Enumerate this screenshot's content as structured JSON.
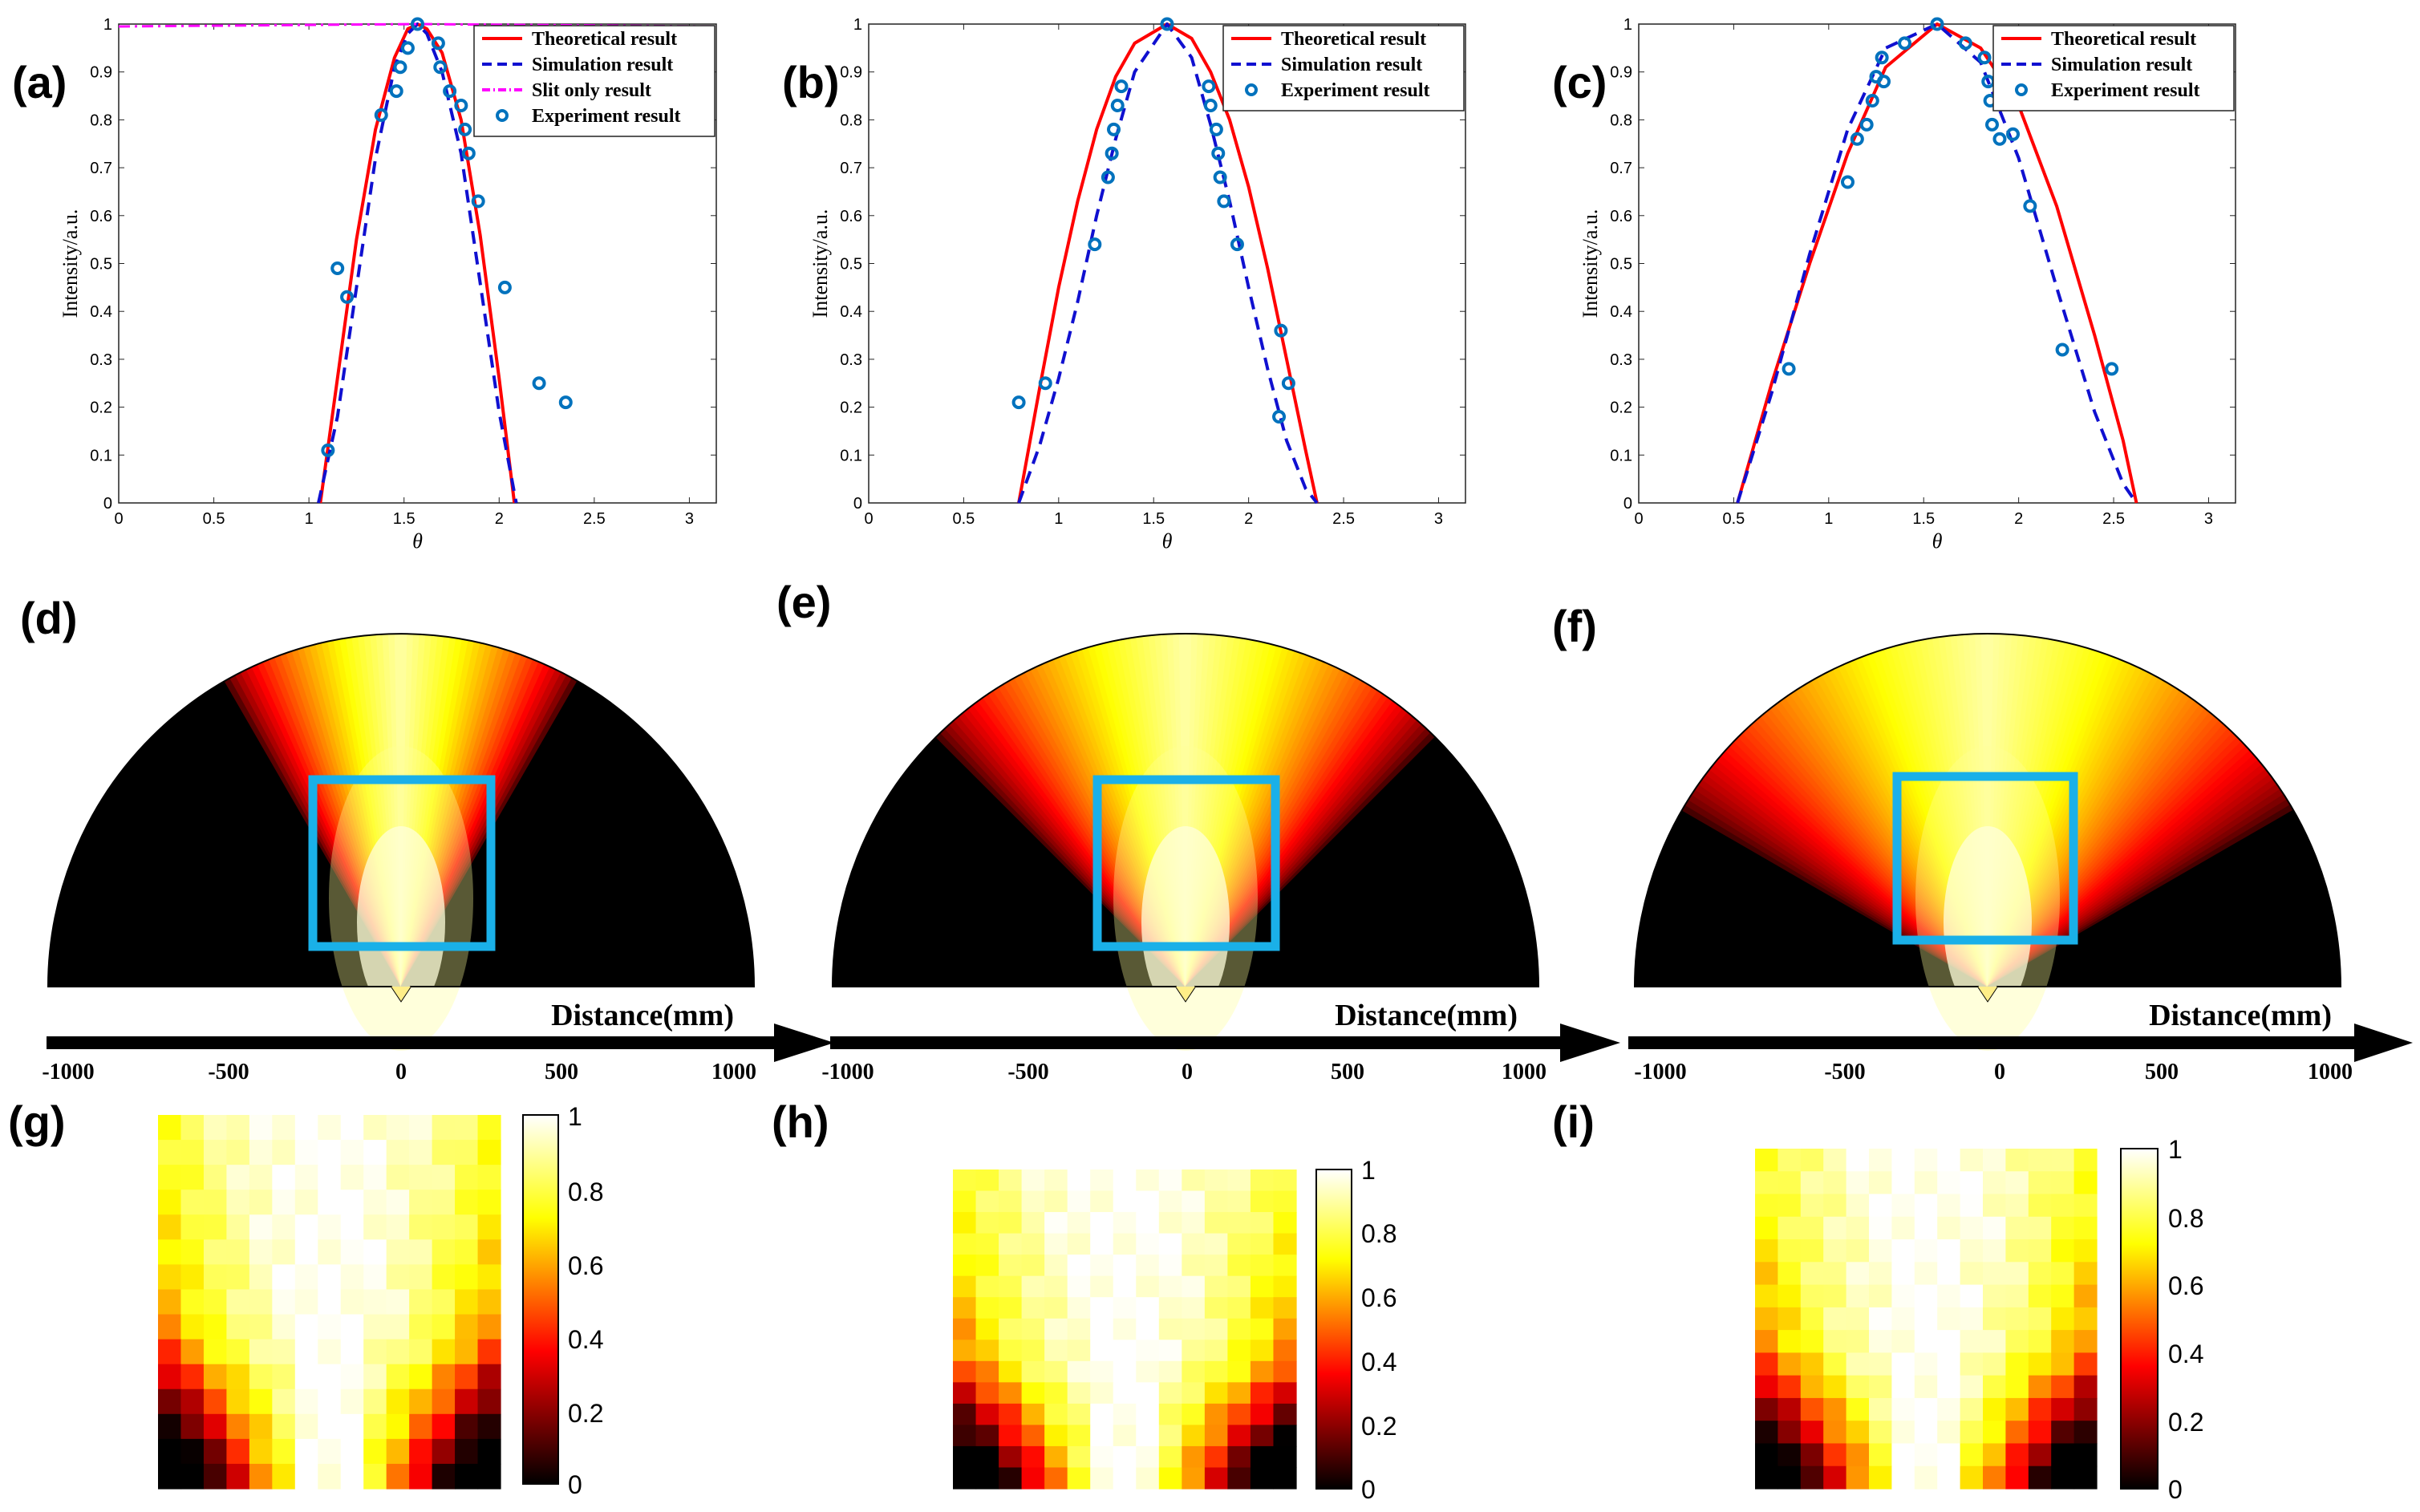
{
  "panel_labels": [
    "(a)",
    "(b)",
    "(c)",
    "(d)",
    "(e)",
    "(f)",
    "(g)",
    "(h)",
    "(i)"
  ],
  "colors": {
    "theoretical": "#ff0000",
    "simulation": "#1010d0",
    "slit_only": "#ff00ff",
    "experiment": "#0072bd",
    "highlight_box": "#1ab0e8",
    "colormap": "hot"
  },
  "chart_data": [
    {
      "id": "a",
      "type": "line",
      "xlabel": "θ",
      "ylabel": "Intensity/a.u.",
      "xlim": [
        0,
        3.14159
      ],
      "ylim": [
        0,
        1
      ],
      "xticks": [
        "0",
        "0.5",
        "1",
        "1.5",
        "2",
        "2.5",
        "3"
      ],
      "yticks": [
        "0",
        "0.1",
        "0.2",
        "0.3",
        "0.4",
        "0.5",
        "0.6",
        "0.7",
        "0.8",
        "0.9",
        "1"
      ],
      "legend_position": "top-right",
      "grid": false,
      "series": [
        {
          "name": "Theoretical result",
          "style": "solid",
          "x": [
            1.06,
            1.15,
            1.25,
            1.35,
            1.45,
            1.52,
            1.5708,
            1.62,
            1.7,
            1.8,
            1.9,
            2.0,
            2.08
          ],
          "y": [
            0,
            0.26,
            0.55,
            0.78,
            0.93,
            0.99,
            1.0,
            0.99,
            0.94,
            0.8,
            0.56,
            0.26,
            0
          ]
        },
        {
          "name": "Simulation result",
          "style": "dashed",
          "x": [
            1.05,
            1.15,
            1.25,
            1.35,
            1.45,
            1.52,
            1.5708,
            1.62,
            1.7,
            1.8,
            1.9,
            2.0,
            2.09
          ],
          "y": [
            0,
            0.18,
            0.45,
            0.72,
            0.91,
            0.98,
            1.0,
            0.98,
            0.9,
            0.73,
            0.46,
            0.19,
            0
          ]
        },
        {
          "name": "Slit only result",
          "style": "dashdot",
          "x": [
            0,
            1.5708,
            3.14159
          ],
          "y": [
            0.995,
            1.0,
            0.995
          ]
        },
        {
          "name": "Experiment result",
          "style": "marker",
          "x": [
            1.1,
            1.15,
            1.2,
            1.38,
            1.46,
            1.48,
            1.52,
            1.5708,
            1.68,
            1.69,
            1.74,
            1.8,
            1.82,
            1.84,
            1.89,
            2.03,
            2.21,
            2.35
          ],
          "y": [
            0.11,
            0.49,
            0.43,
            0.81,
            0.86,
            0.91,
            0.95,
            1.0,
            0.96,
            0.91,
            0.86,
            0.83,
            0.78,
            0.73,
            0.63,
            0.45,
            0.25,
            0.21
          ]
        }
      ]
    },
    {
      "id": "b",
      "type": "line",
      "xlabel": "θ",
      "ylabel": "Intensity/a.u.",
      "xlim": [
        0,
        3.14159
      ],
      "ylim": [
        0,
        1
      ],
      "xticks": [
        "0",
        "0.5",
        "1",
        "1.5",
        "2",
        "2.5",
        "3"
      ],
      "yticks": [
        "0",
        "0.1",
        "0.2",
        "0.3",
        "0.4",
        "0.5",
        "0.6",
        "0.7",
        "0.8",
        "0.9",
        "1"
      ],
      "legend_position": "top-right",
      "grid": false,
      "series": [
        {
          "name": "Theoretical result",
          "style": "solid",
          "x": [
            0.79,
            0.9,
            1.0,
            1.1,
            1.2,
            1.3,
            1.4,
            1.5708,
            1.7,
            1.8,
            1.9,
            2.0,
            2.1,
            2.2,
            2.3,
            2.36
          ],
          "y": [
            0,
            0.24,
            0.45,
            0.63,
            0.78,
            0.89,
            0.96,
            1.0,
            0.97,
            0.9,
            0.8,
            0.66,
            0.49,
            0.3,
            0.11,
            0
          ]
        },
        {
          "name": "Simulation result",
          "style": "dashed",
          "x": [
            0.79,
            0.9,
            1.0,
            1.1,
            1.2,
            1.3,
            1.4,
            1.5708,
            1.7,
            1.8,
            1.9,
            2.0,
            2.1,
            2.2,
            2.3,
            2.36
          ],
          "y": [
            0,
            0.12,
            0.26,
            0.42,
            0.6,
            0.76,
            0.9,
            1.0,
            0.93,
            0.79,
            0.63,
            0.45,
            0.28,
            0.13,
            0.03,
            0
          ]
        },
        {
          "name": "Experiment result",
          "style": "marker",
          "x": [
            0.79,
            0.93,
            1.19,
            1.26,
            1.28,
            1.29,
            1.31,
            1.33,
            1.5708,
            1.79,
            1.8,
            1.83,
            1.84,
            1.85,
            1.87,
            1.94,
            2.16,
            2.17,
            2.21
          ],
          "y": [
            0.21,
            0.25,
            0.54,
            0.68,
            0.73,
            0.78,
            0.83,
            0.87,
            1.0,
            0.87,
            0.83,
            0.78,
            0.73,
            0.68,
            0.63,
            0.54,
            0.18,
            0.36,
            0.25
          ]
        }
      ]
    },
    {
      "id": "c",
      "type": "line",
      "xlabel": "θ",
      "ylabel": "Intensity/a.u.",
      "xlim": [
        0,
        3.14159
      ],
      "ylim": [
        0,
        1
      ],
      "xticks": [
        "0",
        "0.5",
        "1",
        "1.5",
        "2",
        "2.5",
        "3"
      ],
      "yticks": [
        "0",
        "0.1",
        "0.2",
        "0.3",
        "0.4",
        "0.5",
        "0.6",
        "0.7",
        "0.8",
        "0.9",
        "1"
      ],
      "legend_position": "top-right",
      "grid": false,
      "series": [
        {
          "name": "Theoretical result",
          "style": "solid",
          "x": [
            0.52,
            0.7,
            0.9,
            1.1,
            1.3,
            1.5708,
            1.8,
            2.0,
            2.2,
            2.4,
            2.55,
            2.62
          ],
          "y": [
            0,
            0.25,
            0.5,
            0.73,
            0.91,
            1.0,
            0.95,
            0.83,
            0.62,
            0.35,
            0.13,
            0
          ]
        },
        {
          "name": "Simulation result",
          "style": "dashed",
          "x": [
            0.52,
            0.7,
            0.9,
            1.1,
            1.3,
            1.5708,
            1.8,
            2.0,
            2.2,
            2.4,
            2.55,
            2.62
          ],
          "y": [
            0,
            0.23,
            0.52,
            0.78,
            0.95,
            1.0,
            0.92,
            0.72,
            0.45,
            0.19,
            0.04,
            0
          ]
        },
        {
          "name": "Experiment result",
          "style": "marker",
          "x": [
            0.79,
            1.1,
            1.15,
            1.2,
            1.23,
            1.25,
            1.28,
            1.29,
            1.4,
            1.5708,
            1.72,
            1.82,
            1.84,
            1.85,
            1.86,
            1.9,
            1.97,
            2.06,
            2.23,
            2.49
          ],
          "y": [
            0.28,
            0.67,
            0.76,
            0.79,
            0.84,
            0.89,
            0.93,
            0.88,
            0.96,
            1.0,
            0.96,
            0.93,
            0.88,
            0.84,
            0.79,
            0.76,
            0.77,
            0.62,
            0.32,
            0.28
          ]
        }
      ]
    }
  ],
  "fan_panels": [
    {
      "id": "d",
      "axis_label": "Distance(mm)",
      "ticks": [
        "-1000",
        "-500",
        "0",
        "500",
        "1000"
      ],
      "cutoff_deg": 60
    },
    {
      "id": "e",
      "axis_label": "Distance(mm)",
      "ticks": [
        "-1000",
        "-500",
        "0",
        "500",
        "1000"
      ],
      "cutoff_deg": 45
    },
    {
      "id": "f",
      "axis_label": "Distance(mm)",
      "ticks": [
        "-1000",
        "-500",
        "0",
        "500",
        "1000"
      ],
      "cutoff_deg": 30
    }
  ],
  "heatmaps": [
    {
      "id": "g",
      "rows": 15,
      "cols": 15,
      "colorbar_ticks": [
        "1",
        "0.8",
        "0.6",
        "0.4",
        "0.2",
        "0"
      ],
      "clim": [
        0,
        1
      ]
    },
    {
      "id": "h",
      "rows": 15,
      "cols": 15,
      "colorbar_ticks": [
        "1",
        "0.8",
        "0.6",
        "0.4",
        "0.2",
        "0"
      ],
      "clim": [
        0,
        1
      ]
    },
    {
      "id": "i",
      "rows": 15,
      "cols": 15,
      "colorbar_ticks": [
        "1",
        "0.8",
        "0.6",
        "0.4",
        "0.2",
        "0"
      ],
      "clim": [
        0,
        1
      ]
    }
  ]
}
